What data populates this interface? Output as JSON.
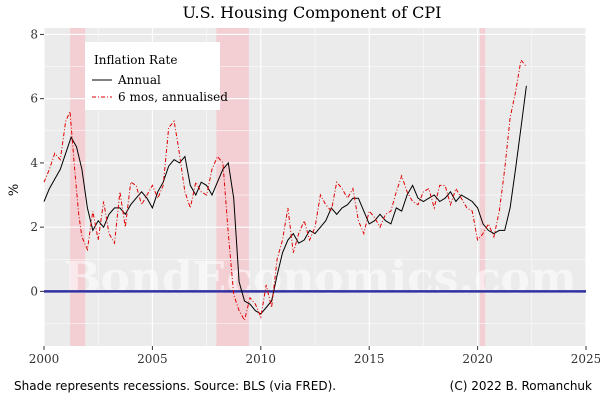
{
  "chart_data": {
    "type": "line",
    "title": "U.S. Housing Component of CPI",
    "xlabel": "",
    "ylabel": "%",
    "xlim": [
      2000,
      2025
    ],
    "ylim": [
      -1.7,
      8.2
    ],
    "x_ticks": [
      2000,
      2005,
      2010,
      2015,
      2020,
      2025
    ],
    "y_ticks": [
      0,
      2,
      4,
      6,
      8
    ],
    "grid": true,
    "legend": {
      "title": "Inflation Rate",
      "position": "top-left",
      "entries": [
        "Annual",
        "6 mos, annualised"
      ]
    },
    "zero_line": {
      "y": 0,
      "color": "#3030a0"
    },
    "recessions": [
      {
        "start": 2001.2,
        "end": 2001.9
      },
      {
        "start": 2007.95,
        "end": 2009.45
      },
      {
        "start": 2020.1,
        "end": 2020.35
      }
    ],
    "series": [
      {
        "name": "Annual",
        "style": "solid",
        "color": "#000000",
        "x": [
          2000.0,
          2000.25,
          2000.5,
          2000.75,
          2001.0,
          2001.25,
          2001.5,
          2001.75,
          2002.0,
          2002.25,
          2002.5,
          2002.75,
          2003.0,
          2003.25,
          2003.5,
          2003.75,
          2004.0,
          2004.25,
          2004.5,
          2004.75,
          2005.0,
          2005.25,
          2005.5,
          2005.75,
          2006.0,
          2006.25,
          2006.5,
          2006.75,
          2007.0,
          2007.25,
          2007.5,
          2007.75,
          2008.0,
          2008.25,
          2008.5,
          2008.75,
          2009.0,
          2009.25,
          2009.5,
          2009.75,
          2010.0,
          2010.25,
          2010.5,
          2010.75,
          2011.0,
          2011.25,
          2011.5,
          2011.75,
          2012.0,
          2012.25,
          2012.5,
          2012.75,
          2013.0,
          2013.25,
          2013.5,
          2013.75,
          2014.0,
          2014.25,
          2014.5,
          2014.75,
          2015.0,
          2015.25,
          2015.5,
          2015.75,
          2016.0,
          2016.25,
          2016.5,
          2016.75,
          2017.0,
          2017.25,
          2017.5,
          2017.75,
          2018.0,
          2018.25,
          2018.5,
          2018.75,
          2019.0,
          2019.25,
          2019.5,
          2019.75,
          2020.0,
          2020.25,
          2020.5,
          2020.75,
          2021.0,
          2021.25,
          2021.5,
          2021.75,
          2022.0,
          2022.25
        ],
        "values": [
          2.8,
          3.2,
          3.5,
          3.8,
          4.3,
          4.8,
          4.5,
          3.8,
          2.6,
          1.9,
          2.2,
          2.0,
          2.4,
          2.6,
          2.6,
          2.4,
          2.7,
          2.9,
          3.1,
          2.9,
          2.6,
          3.1,
          3.4,
          3.9,
          4.1,
          4.0,
          4.2,
          3.3,
          3.0,
          3.4,
          3.3,
          3.0,
          3.4,
          3.8,
          4.0,
          2.9,
          0.3,
          -0.3,
          -0.4,
          -0.6,
          -0.7,
          -0.5,
          -0.3,
          0.5,
          1.2,
          1.6,
          1.8,
          1.5,
          1.6,
          1.9,
          1.8,
          2.0,
          2.2,
          2.6,
          2.4,
          2.6,
          2.7,
          2.9,
          2.9,
          2.5,
          2.1,
          2.2,
          2.4,
          2.2,
          2.1,
          2.6,
          2.5,
          3.0,
          3.3,
          2.9,
          2.8,
          2.9,
          3.0,
          2.8,
          2.9,
          3.1,
          2.8,
          3.0,
          2.9,
          2.8,
          2.6,
          2.1,
          1.9,
          1.8,
          1.9,
          1.9,
          2.6,
          3.8,
          5.1,
          6.4
        ]
      },
      {
        "name": "6 mos, annualised",
        "style": "dashed",
        "color": "#e00000",
        "x": [
          2000.0,
          2000.25,
          2000.5,
          2000.75,
          2001.0,
          2001.2,
          2001.4,
          2001.6,
          2001.75,
          2002.0,
          2002.25,
          2002.5,
          2002.75,
          2003.0,
          2003.25,
          2003.5,
          2003.75,
          2004.0,
          2004.25,
          2004.5,
          2004.75,
          2005.0,
          2005.25,
          2005.5,
          2005.75,
          2006.0,
          2006.2,
          2006.5,
          2006.75,
          2007.0,
          2007.25,
          2007.5,
          2007.75,
          2008.0,
          2008.25,
          2008.5,
          2008.75,
          2009.0,
          2009.25,
          2009.5,
          2009.75,
          2010.0,
          2010.25,
          2010.5,
          2010.75,
          2011.0,
          2011.25,
          2011.5,
          2011.75,
          2012.0,
          2012.25,
          2012.5,
          2012.75,
          2013.0,
          2013.25,
          2013.5,
          2013.75,
          2014.0,
          2014.25,
          2014.5,
          2014.75,
          2015.0,
          2015.25,
          2015.5,
          2015.75,
          2016.0,
          2016.25,
          2016.5,
          2016.75,
          2017.0,
          2017.25,
          2017.5,
          2017.75,
          2018.0,
          2018.25,
          2018.5,
          2018.75,
          2019.0,
          2019.25,
          2019.5,
          2019.75,
          2020.0,
          2020.25,
          2020.5,
          2020.75,
          2021.0,
          2021.25,
          2021.5,
          2021.75,
          2022.0,
          2022.25
        ],
        "values": [
          3.4,
          3.8,
          4.3,
          4.1,
          5.3,
          5.6,
          3.9,
          2.4,
          1.7,
          1.3,
          2.5,
          1.6,
          2.8,
          1.8,
          1.5,
          3.1,
          2.0,
          3.4,
          3.3,
          2.7,
          3.0,
          3.3,
          2.9,
          3.3,
          5.1,
          5.3,
          4.5,
          3.1,
          2.6,
          3.4,
          3.1,
          3.0,
          3.8,
          4.2,
          4.0,
          1.8,
          -0.1,
          -0.6,
          -0.9,
          -0.2,
          -0.4,
          -0.8,
          0.2,
          -0.5,
          1.0,
          1.6,
          2.6,
          1.2,
          1.8,
          2.2,
          1.6,
          2.0,
          3.0,
          2.7,
          2.5,
          3.4,
          3.2,
          2.9,
          3.2,
          2.2,
          1.8,
          2.5,
          2.3,
          2.0,
          2.4,
          2.5,
          3.1,
          3.6,
          3.1,
          2.8,
          2.7,
          3.1,
          3.2,
          2.6,
          3.3,
          3.3,
          2.7,
          3.2,
          2.9,
          2.6,
          2.5,
          1.6,
          1.8,
          2.1,
          1.7,
          2.5,
          3.8,
          5.4,
          6.2,
          7.2,
          7.0
        ]
      }
    ],
    "footer_left": "Shade represents recessions. Source: BLS (via FRED).",
    "footer_right": "(C) 2022 B. Romanchuk",
    "watermark": "BondEconomics.com"
  }
}
